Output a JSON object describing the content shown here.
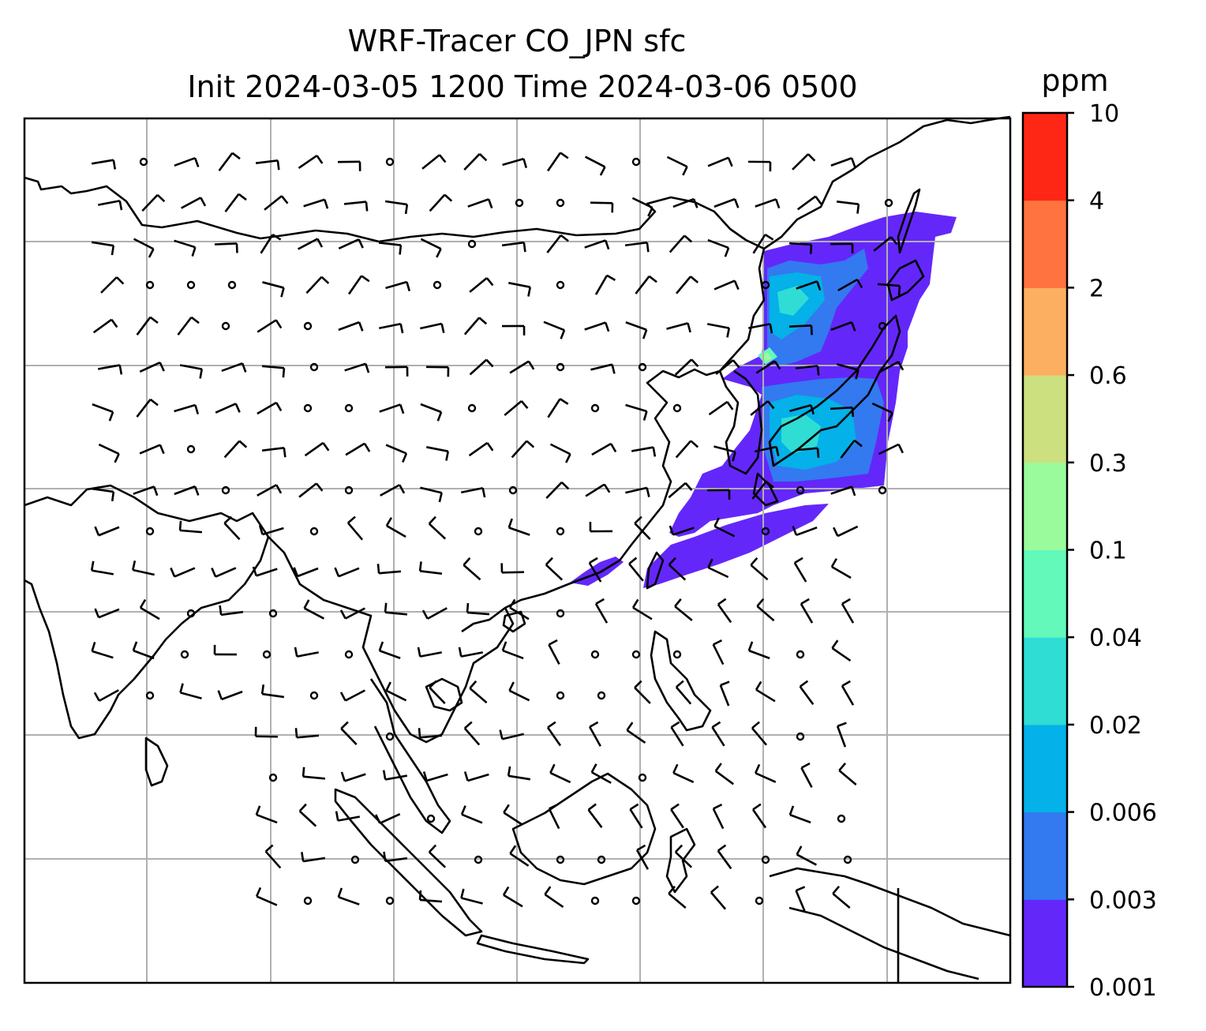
{
  "chart_data": {
    "type": "heatmap",
    "title": "WRF-Tracer CO_JPN sfc",
    "subtitle": "Init 2024-03-05 1200 Time 2024-03-06 0500",
    "colorbar": {
      "unit": "ppm",
      "levels": [
        "0.001",
        "0.003",
        "0.006",
        "0.02",
        "0.04",
        "0.1",
        "0.3",
        "0.6",
        "2",
        "4",
        "10"
      ],
      "colors": [
        "#6427fa",
        "#3379f0",
        "#04b1e8",
        "#2fddd4",
        "#63f9bb",
        "#99fb9b",
        "#cce07f",
        "#fdaf61",
        "#fe7340",
        "#fe2715"
      ]
    },
    "map": {
      "gridlines": true,
      "coastlines": true,
      "wind_barbs": true,
      "plume_region": "Japan and downwind over the western North Pacific"
    }
  }
}
